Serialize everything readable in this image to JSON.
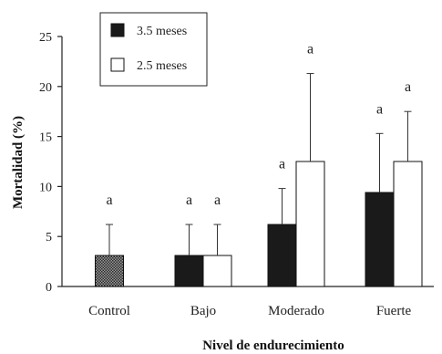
{
  "chart_data": {
    "type": "bar",
    "xlabel": "Nivel de endurecimiento",
    "ylabel": "Mortalidad (%)",
    "ylim": [
      0,
      25
    ],
    "yticks": [
      "0",
      "5",
      "10",
      "15",
      "20",
      "25"
    ],
    "categories": [
      "Control",
      "Bajo",
      "Moderado",
      "Fuerte"
    ],
    "legend_position": "top-left",
    "series": [
      {
        "name": "3.5 meses",
        "color": "#1a1a1a",
        "values": [
          3.1,
          3.1,
          6.2,
          9.4
        ],
        "errors": [
          3.1,
          3.1,
          3.6,
          5.9
        ],
        "labels": [
          "a",
          "a",
          "a",
          "a"
        ]
      },
      {
        "name": "2.5 meses",
        "color": "#ffffff",
        "values": [
          null,
          3.1,
          12.5,
          12.5
        ],
        "errors": [
          null,
          3.1,
          8.8,
          5.0
        ],
        "labels": [
          null,
          "a",
          "a",
          "a"
        ]
      }
    ],
    "control_pattern": "checkered"
  }
}
